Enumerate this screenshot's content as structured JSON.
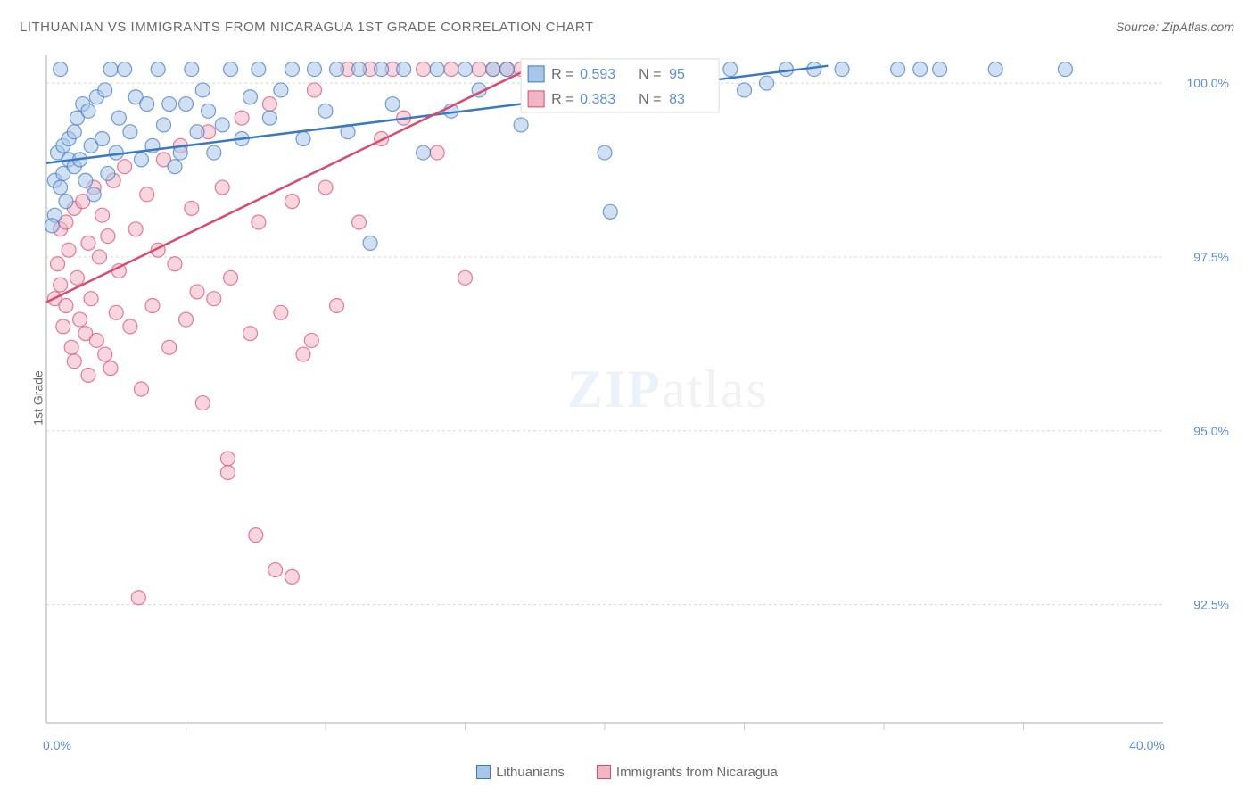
{
  "title": "LITHUANIAN VS IMMIGRANTS FROM NICARAGUA 1ST GRADE CORRELATION CHART",
  "source_label": "Source: ZipAtlas.com",
  "ylabel": "1st Grade",
  "watermark": {
    "bold": "ZIP",
    "rest": "atlas",
    "bold_color": "#a9c6e8",
    "rest_color": "#c8c8c8"
  },
  "colors": {
    "title": "#6a6a6a",
    "source": "#6a6a6a",
    "ylabel": "#6a6a6a",
    "tick_label": "#5b8fd6",
    "grid": "#d8d8d8",
    "axis": "#c8c8c8",
    "series_a_stroke": "#3b78c4",
    "series_a_fill": "#a9c6e8",
    "series_a_fill_opacity": 0.55,
    "series_b_stroke": "#d94a6f",
    "series_b_fill": "#f3b5c4",
    "series_b_fill_opacity": 0.55,
    "legend_text": "#6a6a6a",
    "legend_value": "#5b8fd6"
  },
  "chart": {
    "type": "scatter-with-trend",
    "xlim": [
      0,
      40
    ],
    "ylim": [
      90.8,
      100.4
    ],
    "xticks": [
      0,
      40
    ],
    "xtick_labels": [
      "0.0%",
      "40.0%"
    ],
    "xtick_minor": [
      5,
      10,
      15,
      20,
      25,
      30,
      35
    ],
    "yticks": [
      92.5,
      95.0,
      97.5,
      100.0
    ],
    "ytick_labels": [
      "92.5%",
      "95.0%",
      "97.5%",
      "100.0%"
    ],
    "marker_radius": 8,
    "marker_stroke_width": 1.2,
    "trend_width": 2.5,
    "background": "#ffffff"
  },
  "legend_top": {
    "rows": [
      {
        "swatch": "series_a",
        "r_label": "R = ",
        "r_value": "0.593",
        "n_label": "N = ",
        "n_value": "95"
      },
      {
        "swatch": "series_b",
        "r_label": "R = ",
        "r_value": "0.383",
        "n_label": "N = ",
        "n_value": "83"
      }
    ]
  },
  "bottom_legend": {
    "items": [
      {
        "swatch": "series_a",
        "label": "Lithuanians"
      },
      {
        "swatch": "series_b",
        "label": "Immigrants from Nicaragua"
      }
    ]
  },
  "series": {
    "a": {
      "name": "Lithuanians",
      "trend": {
        "x0": 0,
        "y0": 98.85,
        "x1": 28,
        "y1": 100.25
      },
      "points": [
        [
          0.3,
          98.1
        ],
        [
          0.3,
          98.6
        ],
        [
          0.4,
          99.0
        ],
        [
          0.5,
          98.5
        ],
        [
          0.5,
          100.2
        ],
        [
          0.6,
          99.1
        ],
        [
          0.6,
          98.7
        ],
        [
          0.7,
          98.3
        ],
        [
          0.8,
          99.2
        ],
        [
          0.8,
          98.9
        ],
        [
          1.0,
          99.3
        ],
        [
          1.0,
          98.8
        ],
        [
          1.1,
          99.5
        ],
        [
          1.2,
          98.9
        ],
        [
          1.3,
          99.7
        ],
        [
          1.4,
          98.6
        ],
        [
          1.5,
          99.6
        ],
        [
          1.6,
          99.1
        ],
        [
          1.7,
          98.4
        ],
        [
          1.8,
          99.8
        ],
        [
          2.0,
          99.2
        ],
        [
          2.1,
          99.9
        ],
        [
          2.2,
          98.7
        ],
        [
          2.3,
          100.2
        ],
        [
          2.5,
          99.0
        ],
        [
          2.6,
          99.5
        ],
        [
          2.8,
          100.2
        ],
        [
          3.0,
          99.3
        ],
        [
          3.2,
          99.8
        ],
        [
          3.4,
          98.9
        ],
        [
          3.6,
          99.7
        ],
        [
          3.8,
          99.1
        ],
        [
          4.0,
          100.2
        ],
        [
          4.2,
          99.4
        ],
        [
          4.4,
          99.7
        ],
        [
          4.6,
          98.8
        ],
        [
          4.8,
          99.0
        ],
        [
          5.0,
          99.7
        ],
        [
          5.2,
          100.2
        ],
        [
          5.4,
          99.3
        ],
        [
          5.6,
          99.9
        ],
        [
          5.8,
          99.6
        ],
        [
          6.0,
          99.0
        ],
        [
          6.3,
          99.4
        ],
        [
          6.6,
          100.2
        ],
        [
          7.0,
          99.2
        ],
        [
          7.3,
          99.8
        ],
        [
          7.6,
          100.2
        ],
        [
          8.0,
          99.5
        ],
        [
          8.4,
          99.9
        ],
        [
          8.8,
          100.2
        ],
        [
          9.2,
          99.2
        ],
        [
          9.6,
          100.2
        ],
        [
          10.0,
          99.6
        ],
        [
          10.4,
          100.2
        ],
        [
          10.8,
          99.3
        ],
        [
          11.2,
          100.2
        ],
        [
          11.6,
          97.7
        ],
        [
          12.0,
          100.2
        ],
        [
          12.4,
          99.7
        ],
        [
          12.8,
          100.2
        ],
        [
          13.5,
          99.0
        ],
        [
          14.0,
          100.2
        ],
        [
          14.5,
          99.6
        ],
        [
          15.0,
          100.2
        ],
        [
          15.5,
          99.9
        ],
        [
          16.0,
          100.2
        ],
        [
          16.5,
          100.2
        ],
        [
          17.0,
          99.4
        ],
        [
          17.5,
          100.2
        ],
        [
          18.0,
          100.2
        ],
        [
          18.5,
          99.7
        ],
        [
          19.0,
          100.2
        ],
        [
          19.5,
          100.2
        ],
        [
          20.0,
          99.0
        ],
        [
          20.5,
          100.2
        ],
        [
          21.0,
          100.2
        ],
        [
          21.5,
          100.2
        ],
        [
          20.2,
          98.15
        ],
        [
          22.0,
          100.2
        ],
        [
          22.5,
          100.2
        ],
        [
          23.0,
          100.2
        ],
        [
          23.8,
          100.2
        ],
        [
          24.5,
          100.2
        ],
        [
          25.0,
          99.9
        ],
        [
          25.8,
          100.0
        ],
        [
          26.5,
          100.2
        ],
        [
          27.5,
          100.2
        ],
        [
          28.5,
          100.2
        ],
        [
          30.5,
          100.2
        ],
        [
          31.3,
          100.2
        ],
        [
          32.0,
          100.2
        ],
        [
          34.0,
          100.2
        ],
        [
          36.5,
          100.2
        ],
        [
          0.2,
          97.95
        ]
      ]
    },
    "b": {
      "name": "Immigrants from Nicaragua",
      "trend": {
        "x0": 0,
        "y0": 96.85,
        "x1": 17.5,
        "y1": 100.25
      },
      "points": [
        [
          0.3,
          96.9
        ],
        [
          0.4,
          97.4
        ],
        [
          0.5,
          97.1
        ],
        [
          0.5,
          97.9
        ],
        [
          0.6,
          96.5
        ],
        [
          0.7,
          98.0
        ],
        [
          0.7,
          96.8
        ],
        [
          0.8,
          97.6
        ],
        [
          0.9,
          96.2
        ],
        [
          1.0,
          98.2
        ],
        [
          1.0,
          96.0
        ],
        [
          1.1,
          97.2
        ],
        [
          1.2,
          96.6
        ],
        [
          1.3,
          98.3
        ],
        [
          1.4,
          96.4
        ],
        [
          1.5,
          97.7
        ],
        [
          1.5,
          95.8
        ],
        [
          1.6,
          96.9
        ],
        [
          1.7,
          98.5
        ],
        [
          1.8,
          96.3
        ],
        [
          1.9,
          97.5
        ],
        [
          2.0,
          98.1
        ],
        [
          2.1,
          96.1
        ],
        [
          2.2,
          97.8
        ],
        [
          2.3,
          95.9
        ],
        [
          2.4,
          98.6
        ],
        [
          2.5,
          96.7
        ],
        [
          2.6,
          97.3
        ],
        [
          2.8,
          98.8
        ],
        [
          3.0,
          96.5
        ],
        [
          3.2,
          97.9
        ],
        [
          3.4,
          95.6
        ],
        [
          3.3,
          92.6
        ],
        [
          3.6,
          98.4
        ],
        [
          3.8,
          96.8
        ],
        [
          4.0,
          97.6
        ],
        [
          4.2,
          98.9
        ],
        [
          4.4,
          96.2
        ],
        [
          4.6,
          97.4
        ],
        [
          4.8,
          99.1
        ],
        [
          5.0,
          96.6
        ],
        [
          5.2,
          98.2
        ],
        [
          5.4,
          97.0
        ],
        [
          5.6,
          95.4
        ],
        [
          5.8,
          99.3
        ],
        [
          6.0,
          96.9
        ],
        [
          6.3,
          98.5
        ],
        [
          6.5,
          94.4
        ],
        [
          6.5,
          94.6
        ],
        [
          6.6,
          97.2
        ],
        [
          7.0,
          99.5
        ],
        [
          7.3,
          96.4
        ],
        [
          7.5,
          93.5
        ],
        [
          7.6,
          98.0
        ],
        [
          8.0,
          99.7
        ],
        [
          8.4,
          96.7
        ],
        [
          8.2,
          93.0
        ],
        [
          8.8,
          98.3
        ],
        [
          8.8,
          92.9
        ],
        [
          9.2,
          96.1
        ],
        [
          9.5,
          96.3
        ],
        [
          9.6,
          99.9
        ],
        [
          10.0,
          98.5
        ],
        [
          10.4,
          96.8
        ],
        [
          10.8,
          100.2
        ],
        [
          11.2,
          98.0
        ],
        [
          11.6,
          100.2
        ],
        [
          12.0,
          99.2
        ],
        [
          12.4,
          100.2
        ],
        [
          12.8,
          99.5
        ],
        [
          13.5,
          100.2
        ],
        [
          14.0,
          99.0
        ],
        [
          14.5,
          100.2
        ],
        [
          15.0,
          97.2
        ],
        [
          15.5,
          100.2
        ],
        [
          16.0,
          100.2
        ],
        [
          16.5,
          100.2
        ],
        [
          17.0,
          100.2
        ],
        [
          17.5,
          100.2
        ],
        [
          18.0,
          99.8
        ],
        [
          18.5,
          100.2
        ],
        [
          19.0,
          100.2
        ],
        [
          20.0,
          100.2
        ]
      ]
    }
  }
}
